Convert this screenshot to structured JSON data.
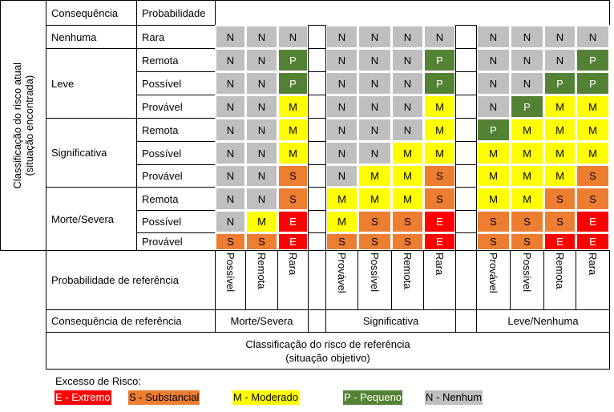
{
  "side_label": [
    "Classificação do risco atual",
    "(situação encontrada)"
  ],
  "header": {
    "consequence": "Consequência",
    "probability": "Probabilidade"
  },
  "groups": [
    {
      "consequence": "Nenhuma",
      "rows": [
        {
          "probability": "Rara",
          "cells": [
            [
              "N",
              "N",
              "N"
            ],
            [
              "N",
              "N",
              "N",
              "N"
            ],
            [
              "N",
              "N",
              "N",
              "N"
            ]
          ]
        }
      ]
    },
    {
      "consequence": "Leve",
      "rows": [
        {
          "probability": "Remota",
          "cells": [
            [
              "N",
              "N",
              "P"
            ],
            [
              "N",
              "N",
              "N",
              "P"
            ],
            [
              "N",
              "N",
              "N",
              "P"
            ]
          ]
        },
        {
          "probability": "Possível",
          "cells": [
            [
              "N",
              "N",
              "P"
            ],
            [
              "N",
              "N",
              "N",
              "P"
            ],
            [
              "N",
              "N",
              "P",
              "P"
            ]
          ]
        },
        {
          "probability": "Provável",
          "cells": [
            [
              "N",
              "N",
              "M"
            ],
            [
              "N",
              "N",
              "N",
              "M"
            ],
            [
              "N",
              "P",
              "M",
              "M"
            ]
          ]
        }
      ]
    },
    {
      "consequence": "Significativa",
      "rows": [
        {
          "probability": "Remota",
          "cells": [
            [
              "N",
              "N",
              "M"
            ],
            [
              "N",
              "N",
              "N",
              "M"
            ],
            [
              "P",
              "M",
              "M",
              "M"
            ]
          ]
        },
        {
          "probability": "Possível",
          "cells": [
            [
              "N",
              "N",
              "M"
            ],
            [
              "N",
              "N",
              "M",
              "M"
            ],
            [
              "M",
              "M",
              "M",
              "M"
            ]
          ]
        },
        {
          "probability": "Provável",
          "cells": [
            [
              "N",
              "N",
              "S"
            ],
            [
              "N",
              "M",
              "M",
              "S"
            ],
            [
              "M",
              "M",
              "M",
              "S"
            ]
          ]
        }
      ]
    },
    {
      "consequence": "Morte/Severa",
      "rows": [
        {
          "probability": "Remota",
          "cells": [
            [
              "N",
              "N",
              "S"
            ],
            [
              "M",
              "M",
              "M",
              "S"
            ],
            [
              "M",
              "M",
              "S",
              "S"
            ]
          ]
        },
        {
          "probability": "Possível",
          "cells": [
            [
              "N",
              "M",
              "E"
            ],
            [
              "M",
              "S",
              "S",
              "E"
            ],
            [
              "S",
              "S",
              "S",
              "E"
            ]
          ]
        },
        {
          "probability": "Provável",
          "cells": [
            [
              "S",
              "S",
              "E"
            ],
            [
              "S",
              "S",
              "S",
              "E"
            ],
            [
              "S",
              "S",
              "E",
              "E"
            ]
          ]
        }
      ]
    }
  ],
  "reference": {
    "probability_label": "Probabilidade de referência",
    "probabilities": [
      [
        "Possível",
        "Remota",
        "Rara"
      ],
      [
        "Provável",
        "Possível",
        "Remota",
        "Rara"
      ],
      [
        "Provável",
        "Possível",
        "Remota",
        "Rara"
      ]
    ],
    "consequence_label": "Consequência de referência",
    "consequences": [
      "Morte/Severa",
      "Significativa",
      "Leve/Nenhuma"
    ],
    "caption": [
      "Classificação do risco de referência",
      "(situação objetivo)"
    ]
  },
  "legend": {
    "title": "Excesso de Risco:",
    "items": [
      {
        "label": "E - Extremo",
        "color": "#ff0000",
        "text_color": "#ffffff"
      },
      {
        "label": "S - Substancial",
        "color": "#ed7d31",
        "text_color": "#000000"
      },
      {
        "label": "M - Moderado",
        "color": "#ffff00",
        "text_color": "#000000"
      },
      {
        "label": "P - Pequeno",
        "color": "#548235",
        "text_color": "#ffffff"
      },
      {
        "label": "N - Nenhum",
        "color": "#bfbfbf",
        "text_color": "#000000"
      }
    ]
  }
}
